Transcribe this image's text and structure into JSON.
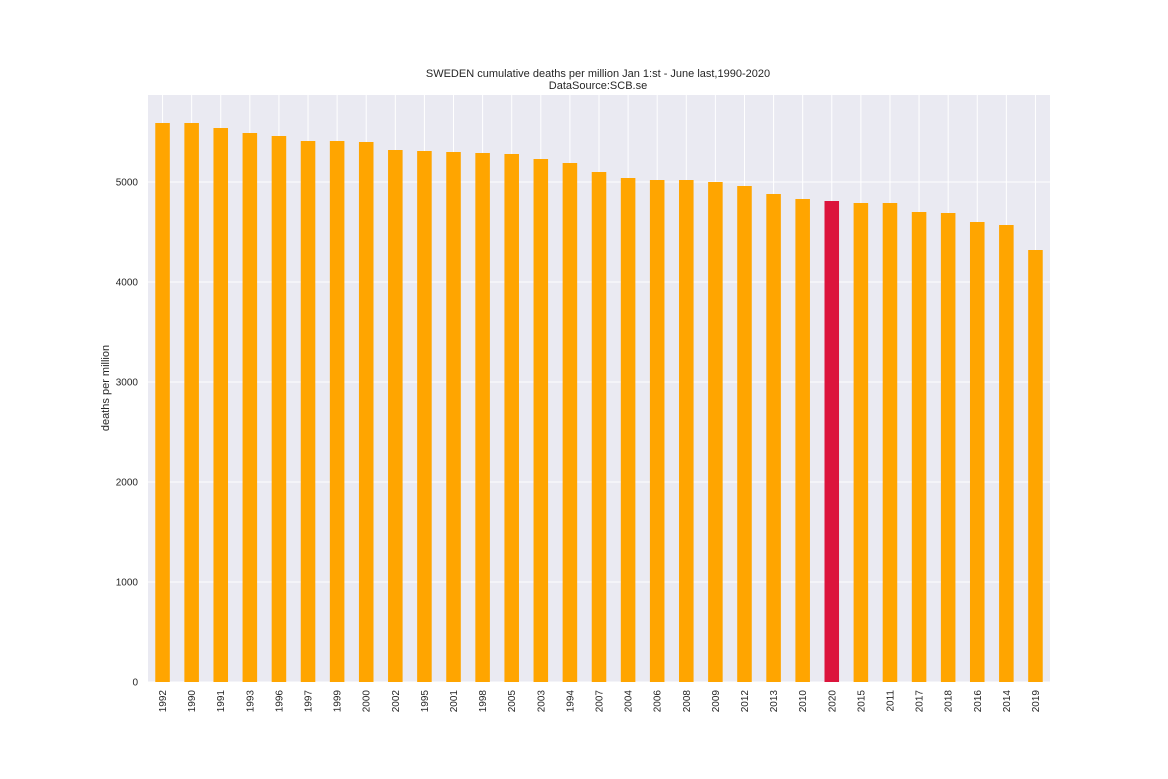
{
  "chart_data": {
    "type": "bar",
    "title": "SWEDEN cumulative deaths per million Jan 1:st - June last,1990-2020",
    "subtitle": "DataSource:SCB.se",
    "xlabel": "",
    "ylabel": "deaths per million",
    "ylim": [
      0,
      5870
    ],
    "yticks": [
      0,
      1000,
      2000,
      3000,
      4000,
      5000
    ],
    "grid": true,
    "legend": "none",
    "categories": [
      "1992",
      "1990",
      "1991",
      "1993",
      "1996",
      "1997",
      "1999",
      "2000",
      "2002",
      "1995",
      "2001",
      "1998",
      "2005",
      "2003",
      "1994",
      "2007",
      "2004",
      "2006",
      "2008",
      "2009",
      "2012",
      "2013",
      "2010",
      "2020",
      "2015",
      "2011",
      "2017",
      "2018",
      "2016",
      "2014",
      "2019"
    ],
    "values": [
      5590,
      5590,
      5540,
      5490,
      5460,
      5410,
      5410,
      5400,
      5320,
      5310,
      5300,
      5290,
      5280,
      5230,
      5190,
      5100,
      5040,
      5020,
      5020,
      5000,
      4960,
      4880,
      4830,
      4810,
      4790,
      4790,
      4700,
      4690,
      4600,
      4570,
      4320
    ],
    "highlight_category": "2020",
    "colors": {
      "bar": "#ffa500",
      "highlight": "#dc143c",
      "background": "#eaeaf2",
      "grid": "#ffffff"
    }
  }
}
